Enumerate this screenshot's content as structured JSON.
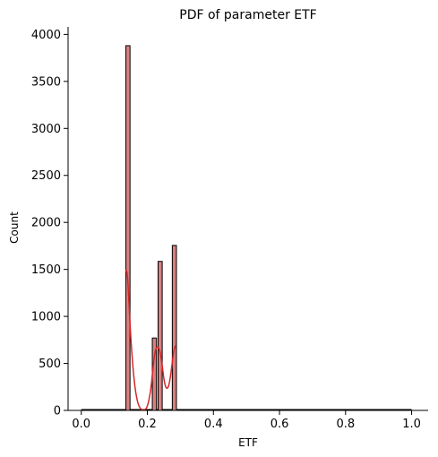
{
  "chart_data": {
    "type": "bar",
    "title": "PDF of parameter ETF",
    "xlabel": "ETF",
    "ylabel": "Count",
    "xlim": [
      -0.04,
      1.05
    ],
    "ylim": [
      0,
      4080
    ],
    "xticks": [
      "0.0",
      "0.2",
      "0.4",
      "0.6",
      "0.8",
      "1.0"
    ],
    "xtick_values": [
      0.0,
      0.2,
      0.4,
      0.6,
      0.8,
      1.0
    ],
    "yticks": [
      "0",
      "500",
      "1000",
      "1500",
      "2000",
      "2500",
      "3000",
      "3500",
      "4000"
    ],
    "ytick_values": [
      0,
      500,
      1000,
      1500,
      2000,
      2500,
      3000,
      3500,
      4000
    ],
    "bin_width": 0.0125,
    "bars": [
      {
        "x0": 0.135,
        "count": 3880
      },
      {
        "x0": 0.215,
        "count": 770
      },
      {
        "x0": 0.2325,
        "count": 1585
      },
      {
        "x0": 0.2755,
        "count": 1755
      }
    ],
    "kde": {
      "x": [
        0.135,
        0.14,
        0.145,
        0.15,
        0.16,
        0.17,
        0.18,
        0.19,
        0.2,
        0.21,
        0.215,
        0.22,
        0.225,
        0.23,
        0.235,
        0.24,
        0.245,
        0.25,
        0.255,
        0.26,
        0.265,
        0.27,
        0.275,
        0.28,
        0.285
      ],
      "y": [
        1500,
        1450,
        1100,
        750,
        300,
        80,
        10,
        0,
        30,
        200,
        380,
        550,
        650,
        680,
        660,
        600,
        480,
        330,
        250,
        230,
        260,
        360,
        500,
        640,
        690
      ]
    },
    "bar_fill": "#d98080",
    "bar_stroke": "#000000",
    "kde_color": "#d62728",
    "grid": false,
    "legend": "none"
  }
}
